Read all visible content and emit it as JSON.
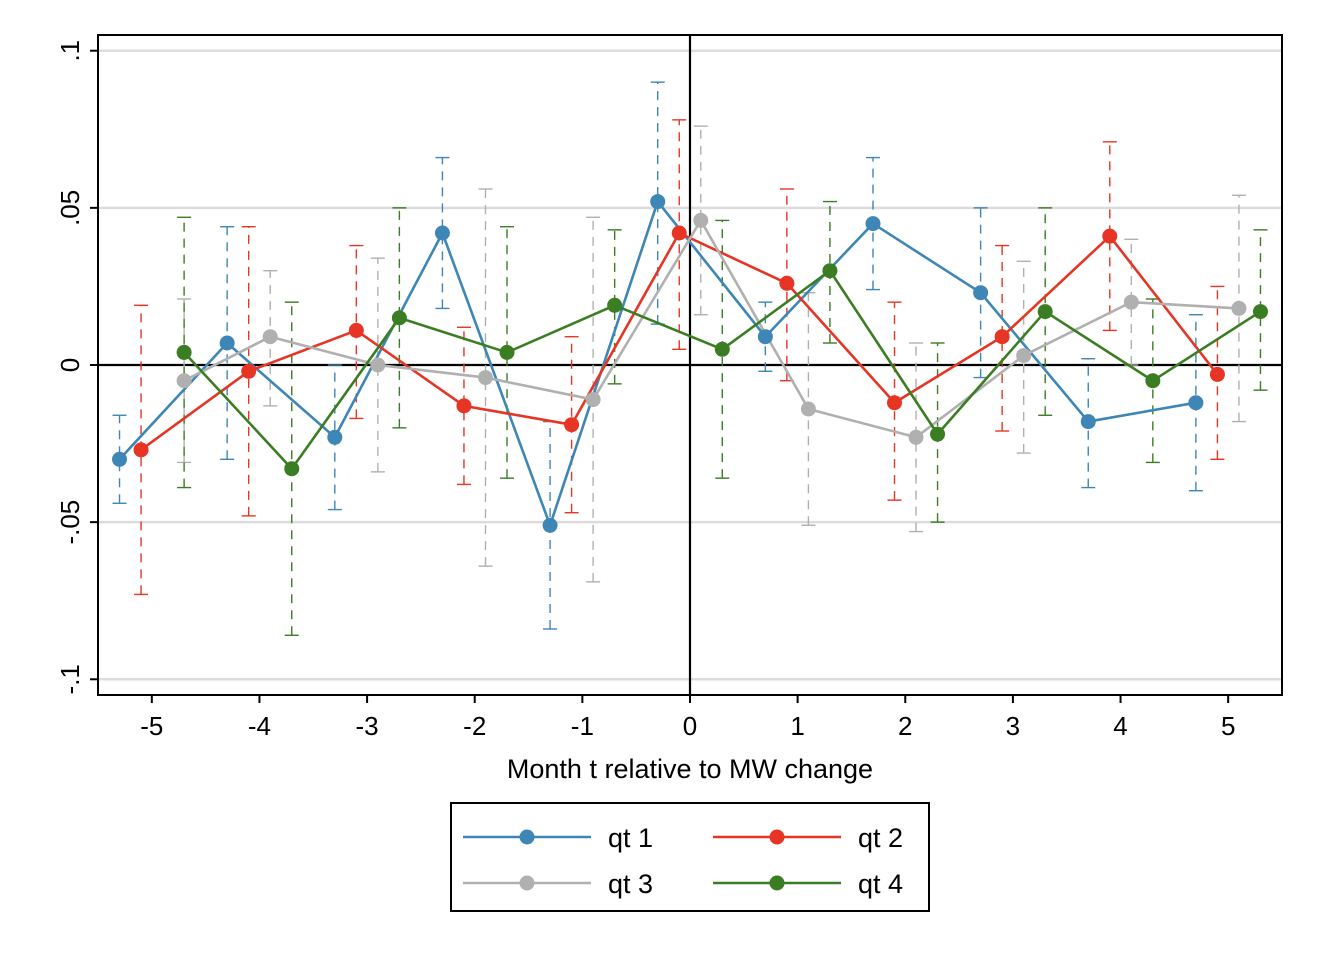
{
  "chart_data": {
    "type": "line",
    "title": "",
    "xlabel": "Month t relative to MW change",
    "ylabel": "",
    "xlim": [
      -5.5,
      5.5
    ],
    "ylim": [
      -0.105,
      0.105
    ],
    "x_ticks": [
      -5,
      -4,
      -3,
      -2,
      -1,
      0,
      1,
      2,
      3,
      4,
      5
    ],
    "x_tick_labels": [
      "-5",
      "-4",
      "-3",
      "-2",
      "-1",
      "0",
      "1",
      "2",
      "3",
      "4",
      "5"
    ],
    "y_ticks": [
      -0.1,
      -0.05,
      0,
      0.05,
      0.1
    ],
    "y_tick_labels": [
      "-.1",
      "-.05",
      "0",
      ".05",
      ".1"
    ],
    "grid": "horizontal",
    "reference_lines": {
      "x": 0,
      "y": 0
    },
    "error_bars": "dashed confidence intervals",
    "legend_position": "bottom",
    "legend_columns": 2,
    "series": [
      {
        "name": "qt 1",
        "color": "#3d86b5",
        "x": [
          -5.3,
          -4.3,
          -3.3,
          -2.3,
          -1.3,
          -0.3,
          0.7,
          1.7,
          2.7,
          3.7,
          4.7
        ],
        "y": [
          -0.03,
          0.007,
          -0.023,
          0.042,
          -0.051,
          0.052,
          0.009,
          0.045,
          0.023,
          -0.018,
          -0.012
        ],
        "lower": [
          -0.044,
          -0.03,
          -0.046,
          0.018,
          -0.084,
          0.013,
          -0.002,
          0.024,
          -0.004,
          -0.039,
          -0.04
        ],
        "upper": [
          -0.016,
          0.044,
          0.0,
          0.066,
          -0.018,
          0.09,
          0.02,
          0.066,
          0.05,
          0.002,
          0.016
        ]
      },
      {
        "name": "qt 2",
        "color": "#e63524",
        "x": [
          -5.1,
          -4.1,
          -3.1,
          -2.1,
          -1.1,
          -0.1,
          0.9,
          1.9,
          2.9,
          3.9,
          4.9
        ],
        "y": [
          -0.027,
          -0.002,
          0.011,
          -0.013,
          -0.019,
          0.042,
          0.026,
          -0.012,
          0.009,
          0.041,
          -0.003
        ],
        "lower": [
          -0.073,
          -0.048,
          -0.017,
          -0.038,
          -0.047,
          0.005,
          -0.005,
          -0.043,
          -0.021,
          0.011,
          -0.03
        ],
        "upper": [
          0.019,
          0.044,
          0.038,
          0.012,
          0.009,
          0.078,
          0.056,
          0.02,
          0.038,
          0.071,
          0.025
        ]
      },
      {
        "name": "qt 3",
        "color": "#b0b0b0",
        "x": [
          -4.7,
          -3.9,
          -2.9,
          -1.9,
          -0.9,
          0.1,
          1.1,
          2.1,
          3.1,
          4.1,
          5.1
        ],
        "y": [
          -0.005,
          0.009,
          0.0,
          -0.004,
          -0.011,
          0.046,
          -0.014,
          -0.023,
          0.003,
          0.02,
          0.018
        ],
        "lower": [
          -0.031,
          -0.013,
          -0.034,
          -0.064,
          -0.069,
          0.016,
          -0.051,
          -0.053,
          -0.028,
          0.0,
          -0.018
        ],
        "upper": [
          0.021,
          0.03,
          0.034,
          0.056,
          0.047,
          0.076,
          0.023,
          0.007,
          0.033,
          0.04,
          0.054
        ]
      },
      {
        "name": "qt 4",
        "color": "#3a7d22",
        "x": [
          -4.7,
          -3.7,
          -2.7,
          -1.7,
          -0.7,
          0.3,
          1.3,
          2.3,
          3.3,
          4.3,
          5.3
        ],
        "y": [
          0.004,
          -0.033,
          0.015,
          0.004,
          0.019,
          0.005,
          0.03,
          -0.022,
          0.017,
          -0.005,
          0.017
        ],
        "lower": [
          -0.039,
          -0.086,
          -0.02,
          -0.036,
          -0.006,
          -0.036,
          0.007,
          -0.05,
          -0.016,
          -0.031,
          -0.008
        ],
        "upper": [
          0.047,
          0.02,
          0.05,
          0.044,
          0.043,
          0.046,
          0.052,
          0.007,
          0.05,
          0.021,
          0.043
        ]
      }
    ]
  }
}
